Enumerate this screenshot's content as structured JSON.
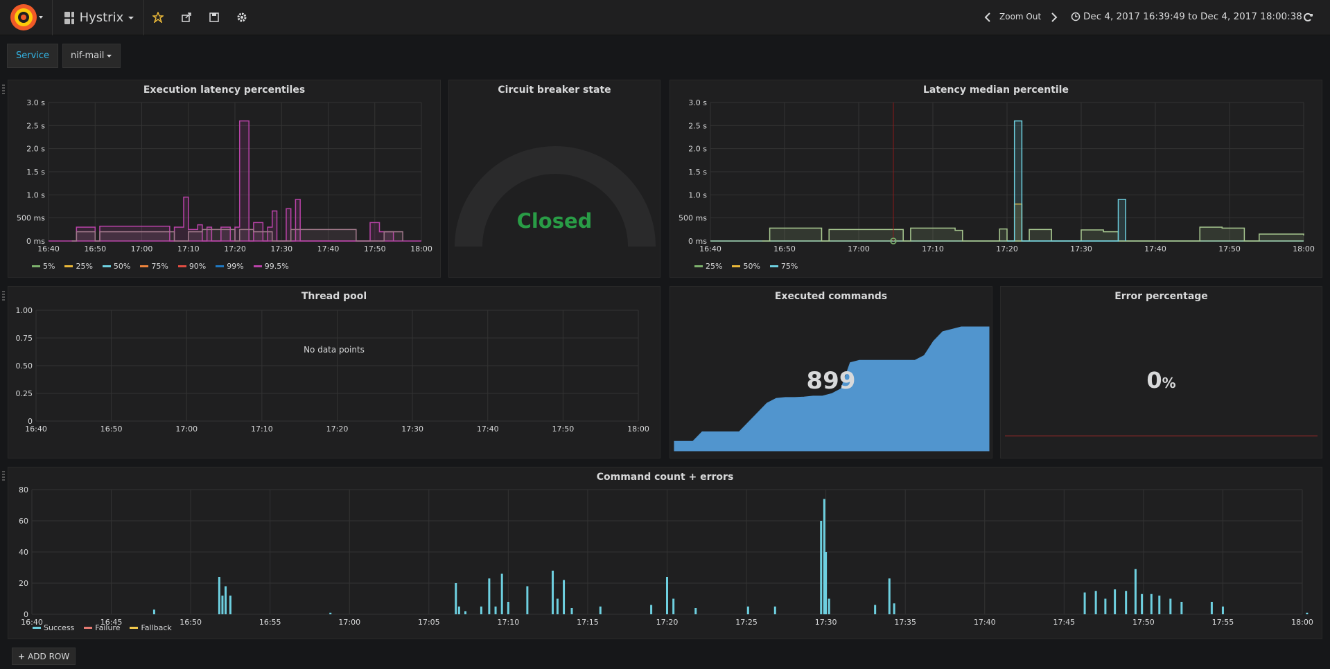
{
  "topbar": {
    "dashboard_title": "Hystrix",
    "zoom_out_label": "Zoom Out",
    "time_range": "Dec 4, 2017 16:39:49 to Dec 4, 2017 18:00:38"
  },
  "variables": {
    "label": "Service",
    "value": "nif-mail"
  },
  "panels": {
    "latency_percentiles": {
      "title": "Execution latency percentiles",
      "legend": [
        "5%",
        "25%",
        "50%",
        "75%",
        "90%",
        "99%",
        "99.5%"
      ]
    },
    "circuit_breaker": {
      "title": "Circuit breaker state",
      "value": "Closed"
    },
    "latency_median": {
      "title": "Latency median percentile",
      "legend": [
        "25%",
        "50%",
        "75%"
      ]
    },
    "thread_pool": {
      "title": "Thread pool",
      "no_data": "No data points"
    },
    "executed_commands": {
      "title": "Executed commands",
      "value": "899"
    },
    "error_percentage": {
      "title": "Error percentage",
      "value": "0",
      "unit": "%"
    },
    "command_count": {
      "title": "Command count + errors",
      "legend": [
        "Success",
        "Failure",
        "Fallback"
      ]
    }
  },
  "colors": {
    "green": "#7eb26d",
    "yellow": "#eab839",
    "cyan": "#6ed0e0",
    "orange": "#ef843c",
    "red": "#e24d42",
    "blue": "#1f78c1",
    "magenta": "#ba43a9",
    "ok": "#299c46",
    "fill_blue": "#5195ce",
    "failure": "#e77b72",
    "fallback": "#f2c94c"
  },
  "add_row_label": "ADD ROW",
  "chart_data": [
    {
      "type": "line",
      "title": "Execution latency percentiles",
      "y_ticks": [
        "0 ms",
        "500 ms",
        "1.0 s",
        "1.5 s",
        "2.0 s",
        "2.5 s",
        "3.0 s"
      ],
      "ylim": [
        0,
        3000
      ],
      "x_ticks": [
        "16:40",
        "16:50",
        "17:00",
        "17:10",
        "17:20",
        "17:30",
        "17:40",
        "17:50",
        "18:00"
      ],
      "series": [
        {
          "name": "99.5%",
          "x": [
            "16:45",
            "16:46",
            "16:50",
            "16:51",
            "17:06",
            "17:07",
            "17:09",
            "17:10",
            "17:12",
            "17:13",
            "17:14",
            "17:15",
            "17:17",
            "17:19",
            "17:20",
            "17:21",
            "17:23",
            "17:24",
            "17:26",
            "17:27",
            "17:28",
            "17:29",
            "17:31",
            "17:32",
            "17:33",
            "17:34",
            "17:46",
            "17:49",
            "17:51",
            "17:54"
          ],
          "values": [
            0,
            300,
            0,
            320,
            0,
            300,
            950,
            250,
            350,
            0,
            300,
            0,
            300,
            0,
            300,
            2600,
            0,
            400,
            0,
            300,
            650,
            0,
            700,
            0,
            900,
            0,
            0,
            400,
            200,
            0
          ]
        },
        {
          "name": "50%",
          "x": [
            "16:45",
            "16:46",
            "16:50",
            "16:51",
            "17:07",
            "17:10",
            "17:13",
            "17:20",
            "17:21",
            "17:24",
            "17:28",
            "17:32",
            "17:46",
            "17:52",
            "17:56"
          ],
          "values": [
            0,
            200,
            0,
            200,
            0,
            200,
            250,
            0,
            250,
            200,
            0,
            250,
            0,
            200,
            0
          ]
        }
      ]
    },
    {
      "type": "gauge",
      "title": "Circuit breaker state",
      "value": "Closed"
    },
    {
      "type": "line",
      "title": "Latency median percentile",
      "y_ticks": [
        "0 ms",
        "500 ms",
        "1.0 s",
        "1.5 s",
        "2.0 s",
        "2.5 s",
        "3.0 s"
      ],
      "ylim": [
        0,
        3000
      ],
      "x_ticks": [
        "16:40",
        "16:50",
        "17:00",
        "17:10",
        "17:20",
        "17:30",
        "17:40",
        "17:50",
        "18:00"
      ],
      "series": [
        {
          "name": "25%",
          "x": [
            "16:47",
            "16:48",
            "16:55",
            "16:56",
            "17:06",
            "17:07",
            "17:13",
            "17:14",
            "17:19",
            "17:20",
            "17:23",
            "17:26",
            "17:30",
            "17:33",
            "17:35",
            "17:36",
            "17:46",
            "17:49",
            "17:52",
            "17:54",
            "18:00"
          ],
          "values": [
            0,
            280,
            0,
            250,
            0,
            280,
            230,
            0,
            260,
            0,
            250,
            0,
            240,
            200,
            0,
            0,
            300,
            280,
            0,
            150,
            120
          ]
        },
        {
          "name": "50%",
          "x": [
            "17:20",
            "17:21",
            "17:22"
          ],
          "values": [
            0,
            800,
            0
          ]
        },
        {
          "name": "75%",
          "x": [
            "17:20",
            "17:21",
            "17:22",
            "17:34",
            "17:35",
            "17:36"
          ],
          "values": [
            0,
            2600,
            0,
            0,
            900,
            0
          ]
        }
      ]
    },
    {
      "type": "line",
      "title": "Thread pool",
      "y_ticks": [
        "0",
        "0.25",
        "0.50",
        "0.75",
        "1.00"
      ],
      "ylim": [
        0,
        1
      ],
      "x_ticks": [
        "16:40",
        "16:50",
        "17:00",
        "17:10",
        "17:20",
        "17:30",
        "17:40",
        "17:50",
        "18:00"
      ],
      "series": []
    },
    {
      "type": "area",
      "title": "Executed commands",
      "value": "899",
      "sparkline": [
        0,
        0,
        0,
        20,
        20,
        20,
        20,
        20,
        40,
        60,
        80,
        90,
        92,
        92,
        93,
        95,
        95,
        100,
        110,
        165,
        170,
        170,
        170,
        170,
        170,
        170,
        170,
        180,
        210,
        230,
        235,
        240,
        240,
        240,
        240
      ]
    },
    {
      "type": "singlestat",
      "title": "Error percentage",
      "value": "0",
      "unit": "%"
    },
    {
      "type": "bar",
      "title": "Command count + errors",
      "y_ticks": [
        "0",
        "20",
        "40",
        "60",
        "80"
      ],
      "ylim": [
        0,
        80
      ],
      "x_ticks": [
        "16:40",
        "16:45",
        "16:50",
        "16:55",
        "17:00",
        "17:05",
        "17:10",
        "17:15",
        "17:20",
        "17:25",
        "17:30",
        "17:35",
        "17:40",
        "17:45",
        "17:50",
        "17:55",
        "18:00"
      ],
      "series": [
        {
          "name": "Success",
          "x": [
            "16:47.7",
            "16:51.8",
            "16:52",
            "16:52.2",
            "16:52.5",
            "16:58.8",
            "17:06.7",
            "17:06.9",
            "17:07.3",
            "17:08.3",
            "17:08.8",
            "17:09.2",
            "17:09.6",
            "17:10",
            "17:11.2",
            "17:12.8",
            "17:13.1",
            "17:13.5",
            "17:14",
            "17:15.8",
            "17:19",
            "17:20",
            "17:20.4",
            "17:21.8",
            "17:25.1",
            "17:26.8",
            "17:29.7",
            "17:29.9",
            "17:30",
            "17:30.2",
            "17:33.1",
            "17:34",
            "17:34.3",
            "17:46.3",
            "17:47",
            "17:47.6",
            "17:48.2",
            "17:48.9",
            "17:49.5",
            "17:49.9",
            "17:50.5",
            "17:51",
            "17:51.7",
            "17:52.4",
            "17:54.3",
            "17:55",
            "18:00.3"
          ],
          "values": [
            3,
            24,
            12,
            18,
            12,
            1,
            20,
            5,
            2,
            5,
            23,
            5,
            26,
            8,
            18,
            28,
            10,
            22,
            4,
            5,
            6,
            24,
            10,
            4,
            5,
            5,
            60,
            74,
            40,
            10,
            6,
            23,
            7,
            14,
            15,
            10,
            16,
            15,
            29,
            13,
            13,
            12,
            10,
            8,
            8,
            5,
            1
          ]
        },
        {
          "name": "Failure",
          "x": [],
          "values": []
        },
        {
          "name": "Fallback",
          "x": [],
          "values": []
        }
      ]
    }
  ]
}
